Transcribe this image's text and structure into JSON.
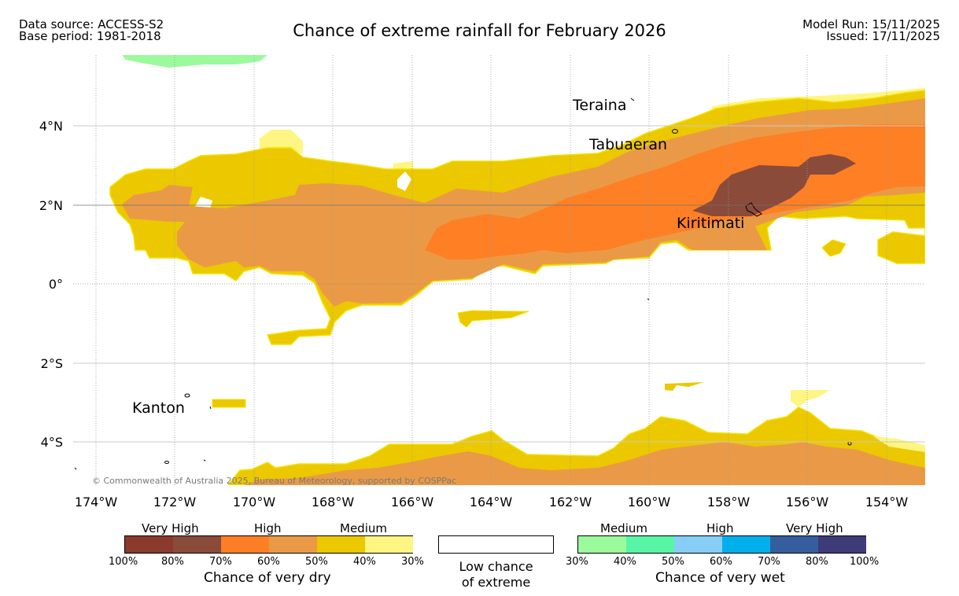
{
  "header": {
    "data_source": "Data source: ACCESS-S2",
    "base_period": "Base period: 1981-2018",
    "title": "Chance of extreme rainfall for February 2026",
    "model_run": "Model Run: 15/11/2025",
    "issued": "Issued: 17/11/2025"
  },
  "map": {
    "lat_labels": [
      "4°N",
      "2°N",
      "0°",
      "2°S",
      "4°S"
    ],
    "lon_labels": [
      "174°W",
      "172°W",
      "170°W",
      "168°W",
      "166°W",
      "164°W",
      "162°W",
      "160°W",
      "158°W",
      "156°W",
      "154°W"
    ],
    "places": [
      "Teraina",
      "Tabuaeran",
      "Kiritimati",
      "Kanton"
    ],
    "copyright": "© Commonwealth of Australia 2025, Bureau of Meteorology, supported by COSPPac"
  },
  "legend": {
    "dry": {
      "groups": [
        "Very High",
        "High",
        "Medium"
      ],
      "colors": [
        "#8b3a2e",
        "#8a4b3a",
        "#ff7f24",
        "#ea9a47",
        "#ebc800",
        "#fff582"
      ],
      "ticks": [
        "100%",
        "80%",
        "70%",
        "60%",
        "50%",
        "40%",
        "30%"
      ],
      "title": "Chance of very dry"
    },
    "low": {
      "line1": "Low chance",
      "line2": "of extreme"
    },
    "wet": {
      "groups": [
        "Medium",
        "High",
        "Very High"
      ],
      "colors": [
        "#9bfa9b",
        "#57f5a5",
        "#87cdf5",
        "#00afec",
        "#355f9c",
        "#3f3a78"
      ],
      "ticks": [
        "30%",
        "40%",
        "50%",
        "60%",
        "70%",
        "80%",
        "100%"
      ],
      "title": "Chance of very wet"
    }
  }
}
